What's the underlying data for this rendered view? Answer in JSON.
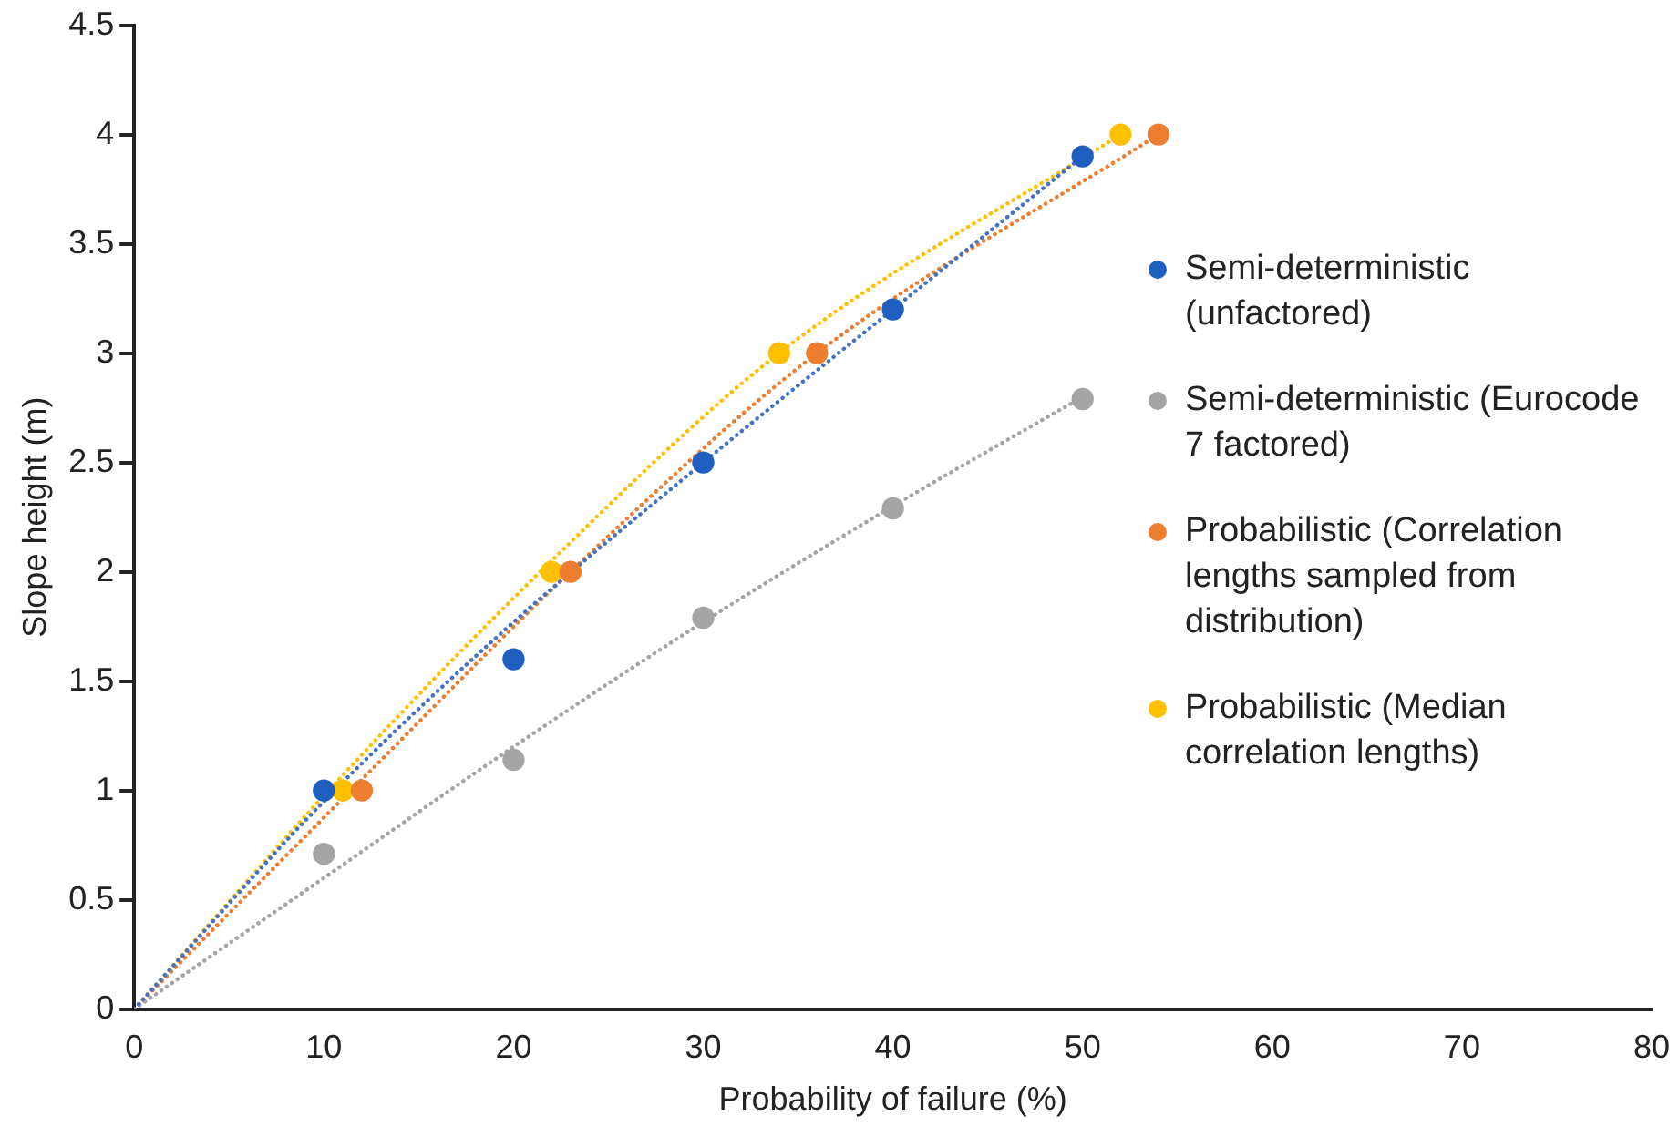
{
  "chart_data": {
    "type": "scatter",
    "xlabel": "Probability of failure (%)",
    "ylabel": "Slope height (m)",
    "xlim": [
      0,
      80
    ],
    "xticks": [
      0,
      10,
      20,
      30,
      40,
      50,
      60,
      70,
      80
    ],
    "ylim": [
      0,
      4.5
    ],
    "yticks": [
      0,
      0.5,
      1,
      1.5,
      2,
      2.5,
      3,
      3.5,
      4,
      4.5
    ],
    "grid": false,
    "legend": "right",
    "marker": "circle",
    "series": [
      {
        "type": "line",
        "color": "#4472c4",
        "line_style": "dotted",
        "marker": "none",
        "x": [
          0,
          10,
          20,
          30,
          40,
          50
        ],
        "values": [
          0,
          0.95,
          1.77,
          2.5,
          3.2,
          3.9
        ]
      },
      {
        "type": "line",
        "color": "#a5a5a5",
        "line_style": "dotted",
        "marker": "none",
        "x": [
          0,
          10,
          20,
          30,
          40,
          50
        ],
        "values": [
          0,
          0.6,
          1.2,
          1.77,
          2.3,
          2.8
        ]
      },
      {
        "type": "line",
        "color": "#ed7d31",
        "line_style": "dotted",
        "marker": "none",
        "x": [
          0,
          12,
          23,
          36,
          54
        ],
        "values": [
          0,
          1.05,
          2,
          3,
          4
        ]
      },
      {
        "type": "line",
        "color": "#ffc000",
        "line_style": "dotted",
        "marker": "none",
        "x": [
          0,
          11,
          22,
          34,
          52
        ],
        "values": [
          0,
          1.07,
          2.05,
          3,
          4
        ]
      },
      {
        "name": "Semi-deterministic (unfactored)",
        "color": "#1f5fbf",
        "x": [
          10,
          20,
          30,
          40,
          50
        ],
        "values": [
          1,
          1.6,
          2.5,
          3.2,
          3.9
        ]
      },
      {
        "name": "Semi-deterministic (Eurocode 7 factored)",
        "color": "#a5a5a5",
        "x": [
          10,
          20,
          30,
          40,
          50
        ],
        "values": [
          0.71,
          1.14,
          1.79,
          2.29,
          2.79
        ]
      },
      {
        "name": "Probabilistic (Correlation lengths sampled from distribution)",
        "color": "#ed7d31",
        "x": [
          12,
          23,
          36,
          54
        ],
        "values": [
          1,
          2,
          3,
          4
        ]
      },
      {
        "name": "Probabilistic (Median correlation lengths)",
        "color": "#ffc000",
        "x": [
          11,
          22,
          34,
          52
        ],
        "values": [
          1,
          2,
          3,
          4
        ]
      }
    ]
  }
}
